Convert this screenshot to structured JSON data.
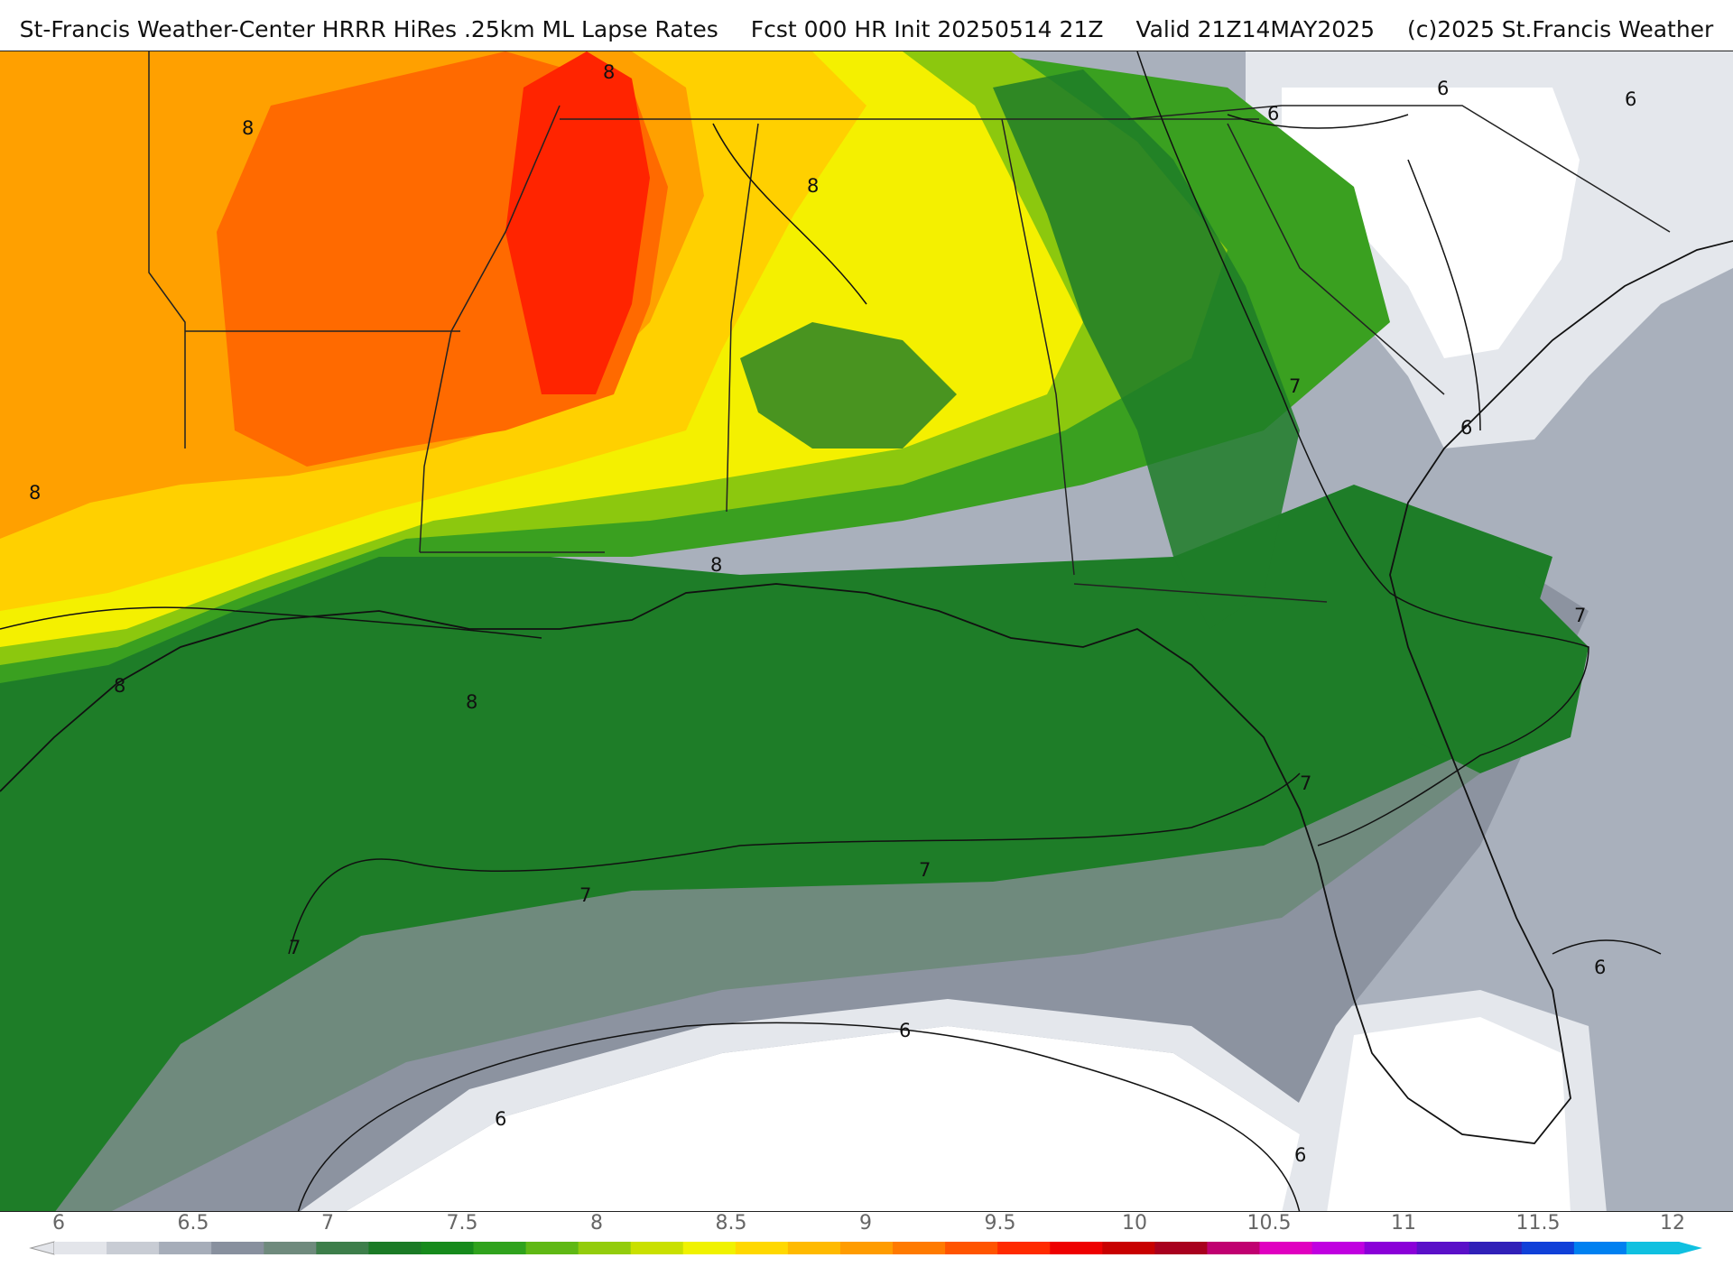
{
  "header": {
    "title_left": "St-Francis Weather-Center HRRR HiRes .25km ML Lapse Rates",
    "title_fcst": "Fcst 000 HR Init 20250514 21Z",
    "title_valid": "Valid 21Z14MAY2025",
    "title_copyright": "(c)2025 St.Francis Weather"
  },
  "legend": {
    "ticks": [
      "6",
      "6.5",
      "7",
      "7.5",
      "8",
      "8.5",
      "9",
      "9.5",
      "10",
      "10.5",
      "11",
      "11.5",
      "12"
    ],
    "colors": [
      "#e3e5ea",
      "#c8ccd4",
      "#a6adb9",
      "#88909e",
      "#6f8a7d",
      "#3d7e4a",
      "#1b7a26",
      "#168a1c",
      "#2fa21d",
      "#5fb815",
      "#93cc0c",
      "#c9e000",
      "#f0f200",
      "#ffd800",
      "#ffba00",
      "#ff9c00",
      "#ff7a00",
      "#ff5400",
      "#ff2a00",
      "#ee0000",
      "#c80000",
      "#a8001e",
      "#c00070",
      "#e000c0",
      "#c000e0",
      "#8a00d8",
      "#5a10c8",
      "#3020b8",
      "#1040d8",
      "#0080f0",
      "#10c0e0"
    ]
  },
  "map": {
    "fill_colors": {
      "gray_light": "#e4e7ec",
      "gray": "#a9b0bc",
      "gray_dark": "#8c93a0",
      "green_dark": "#1e7d28",
      "green": "#3aa020",
      "green_light": "#8cc80e",
      "yellow": "#f4f000",
      "yellow_orange": "#ffd000",
      "orange": "#ffa000",
      "orange_red": "#ff6a00",
      "red": "#ff2400"
    },
    "contour_labels": [
      "8",
      "8",
      "8",
      "8",
      "8",
      "8",
      "8",
      "7",
      "7",
      "7",
      "7",
      "7",
      "7",
      "6",
      "6",
      "6",
      "6",
      "6",
      "6",
      "6",
      "6"
    ]
  }
}
